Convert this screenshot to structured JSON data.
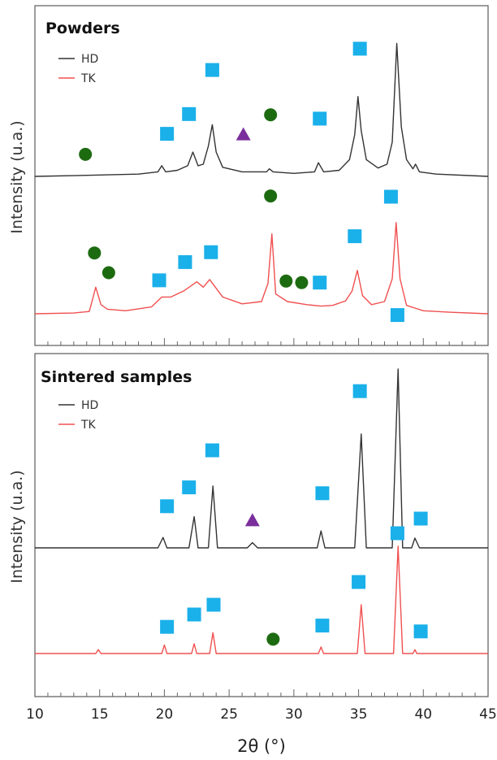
{
  "colors": {
    "HD": "#333333",
    "TK": "#f05050",
    "square": "#1ab0ea",
    "circle": "#1d6b10",
    "triangle": "#7a2f9c",
    "frame": "#666666"
  },
  "x_axis": {
    "label": "2θ (°)",
    "ticks": [
      "10",
      "15",
      "20",
      "25",
      "30",
      "35",
      "40",
      "45"
    ]
  },
  "chart_data": [
    {
      "type": "line",
      "title": "Powders",
      "ylabel": "Intensity (u.a.)",
      "xlim": [
        10,
        45
      ],
      "grid": false,
      "legend": "top-left",
      "series": [
        {
          "name": "HD",
          "x": [
            10,
            13,
            18,
            19.5,
            19.8,
            20.1,
            21,
            21.8,
            22.2,
            22.6,
            23,
            23.4,
            23.7,
            24,
            24.5,
            26,
            27.9,
            28.1,
            28.4,
            30,
            31.6,
            31.9,
            32.3,
            33.5,
            34.3,
            34.7,
            34.95,
            35.2,
            35.6,
            36.5,
            37.2,
            37.6,
            37.95,
            38.3,
            38.7,
            39.2,
            39.4,
            39.7,
            41,
            45
          ],
          "y": [
            0,
            0.1,
            0.3,
            0.6,
            1.4,
            0.6,
            0.8,
            1.4,
            3.2,
            1.4,
            1.6,
            4,
            6.8,
            3.2,
            1.2,
            0.6,
            0.6,
            1.0,
            0.6,
            0.4,
            0.6,
            1.8,
            0.6,
            0.8,
            2.2,
            5.5,
            10.5,
            6,
            2.2,
            1.1,
            1.6,
            4.5,
            17.5,
            6.5,
            2.2,
            1.0,
            1.6,
            0.6,
            0.3,
            0
          ]
        },
        {
          "name": "TK",
          "x": [
            10,
            13,
            14.2,
            14.7,
            15.1,
            15.6,
            17,
            19,
            19.8,
            20.5,
            21.5,
            22.5,
            23,
            23.5,
            24.5,
            26,
            27.5,
            28,
            28.3,
            28.6,
            29.5,
            31,
            32.1,
            33,
            34,
            34.5,
            34.9,
            35.3,
            36,
            37,
            37.6,
            37.9,
            38.2,
            38.7,
            40,
            42,
            45
          ],
          "y": [
            0,
            0.1,
            0.3,
            3.5,
            1.2,
            0.6,
            0.4,
            0.9,
            2.2,
            2.2,
            3.0,
            4.2,
            3.5,
            4.5,
            2.2,
            1.3,
            1.6,
            4.0,
            10.5,
            2.6,
            1.6,
            1.2,
            1.0,
            1.1,
            1.7,
            3.0,
            5.7,
            2.4,
            1.2,
            1.6,
            4.6,
            12.0,
            4.6,
            1.1,
            0.4,
            0.2,
            0
          ]
        }
      ],
      "markers": [
        {
          "shape": "circle",
          "x": 13.9,
          "y": 2.9,
          "trace": "HD"
        },
        {
          "shape": "square",
          "x": 20.2,
          "y": 5.6,
          "trace": "HD"
        },
        {
          "shape": "square",
          "x": 21.9,
          "y": 8.2,
          "trace": "HD"
        },
        {
          "shape": "square",
          "x": 23.7,
          "y": 14.0,
          "trace": "HD"
        },
        {
          "shape": "triangle",
          "x": 26.1,
          "y": 5.5,
          "trace": "HD"
        },
        {
          "shape": "circle",
          "x": 28.2,
          "y": 8.1,
          "trace": "HD"
        },
        {
          "shape": "square",
          "x": 32.0,
          "y": 7.6,
          "trace": "HD"
        },
        {
          "shape": "square",
          "x": 35.1,
          "y": 16.8,
          "trace": "HD"
        },
        {
          "shape": "square",
          "x": 38.0,
          "y": 28.6,
          "trace": "HD"
        },
        {
          "shape": "circle",
          "x": 14.6,
          "y": 8.0,
          "trace": "TK"
        },
        {
          "shape": "circle",
          "x": 15.7,
          "y": 5.4,
          "trace": "TK"
        },
        {
          "shape": "square",
          "x": 19.6,
          "y": 4.4,
          "trace": "TK"
        },
        {
          "shape": "square",
          "x": 21.6,
          "y": 6.8,
          "trace": "TK"
        },
        {
          "shape": "square",
          "x": 23.6,
          "y": 8.1,
          "trace": "TK"
        },
        {
          "shape": "circle",
          "x": 28.2,
          "y": 15.5,
          "trace": "TK"
        },
        {
          "shape": "circle",
          "x": 29.4,
          "y": 4.3,
          "trace": "TK"
        },
        {
          "shape": "circle",
          "x": 30.6,
          "y": 4.1,
          "trace": "TK"
        },
        {
          "shape": "square",
          "x": 32.0,
          "y": 4.1,
          "trace": "TK"
        },
        {
          "shape": "square",
          "x": 34.7,
          "y": 10.2,
          "trace": "TK"
        },
        {
          "shape": "square",
          "x": 37.5,
          "y": 15.4,
          "trace": "TK"
        }
      ]
    },
    {
      "type": "line",
      "title": "Sintered samples",
      "ylabel": "Intensity (u.a.)",
      "xlim": [
        10,
        45
      ],
      "grid": false,
      "legend": "top-left",
      "series": [
        {
          "name": "HD",
          "x": [
            10,
            19.5,
            19.9,
            20.2,
            21.9,
            22.3,
            22.6,
            23.4,
            23.75,
            24.1,
            26.4,
            26.8,
            27.2,
            31.8,
            32.1,
            32.4,
            34.7,
            35.2,
            35.6,
            37.6,
            38.05,
            38.4,
            39.1,
            39.35,
            39.7,
            45
          ],
          "y": [
            0,
            0,
            1.6,
            0,
            0,
            4.8,
            0,
            0,
            9.5,
            0,
            0,
            0.8,
            0,
            0,
            2.6,
            0,
            0,
            17.5,
            0,
            0,
            27.5,
            0,
            0,
            1.5,
            0,
            0
          ]
        },
        {
          "name": "TK",
          "x": [
            10,
            14.7,
            14.9,
            15.1,
            19.8,
            20.0,
            20.2,
            22.1,
            22.3,
            22.5,
            23.5,
            23.75,
            24.0,
            31.9,
            32.1,
            32.3,
            34.9,
            35.2,
            35.5,
            37.7,
            38.05,
            38.4,
            39.2,
            39.35,
            39.5,
            45
          ],
          "y": [
            0,
            0,
            0.6,
            0,
            0,
            1.3,
            0,
            0,
            1.5,
            0,
            0,
            3.2,
            0,
            0,
            1.0,
            0,
            0,
            7.5,
            0,
            0,
            16.5,
            0,
            0,
            0.6,
            0,
            0
          ]
        }
      ],
      "markers": [
        {
          "shape": "square",
          "x": 20.2,
          "y": 6.4,
          "trace": "HD"
        },
        {
          "shape": "square",
          "x": 21.9,
          "y": 9.3,
          "trace": "HD"
        },
        {
          "shape": "square",
          "x": 23.7,
          "y": 15.0,
          "trace": "HD"
        },
        {
          "shape": "triangle",
          "x": 26.8,
          "y": 4.2,
          "trace": "HD"
        },
        {
          "shape": "square",
          "x": 32.2,
          "y": 8.4,
          "trace": "HD"
        },
        {
          "shape": "square",
          "x": 35.1,
          "y": 24.1,
          "trace": "HD"
        },
        {
          "shape": "square",
          "x": 38.0,
          "y": 35.8,
          "trace": "HD"
        },
        {
          "shape": "square",
          "x": 39.8,
          "y": 4.5,
          "trace": "HD"
        },
        {
          "shape": "square",
          "x": 20.2,
          "y": 4.1,
          "trace": "TK"
        },
        {
          "shape": "square",
          "x": 22.3,
          "y": 6.0,
          "trace": "TK"
        },
        {
          "shape": "square",
          "x": 23.8,
          "y": 7.5,
          "trace": "TK"
        },
        {
          "shape": "circle",
          "x": 28.4,
          "y": 2.2,
          "trace": "TK"
        },
        {
          "shape": "square",
          "x": 32.2,
          "y": 4.3,
          "trace": "TK"
        },
        {
          "shape": "square",
          "x": 35.0,
          "y": 11.0,
          "trace": "TK"
        },
        {
          "shape": "square",
          "x": 38.0,
          "y": 18.5,
          "trace": "TK"
        },
        {
          "shape": "square",
          "x": 39.8,
          "y": 3.4,
          "trace": "TK"
        }
      ]
    }
  ]
}
